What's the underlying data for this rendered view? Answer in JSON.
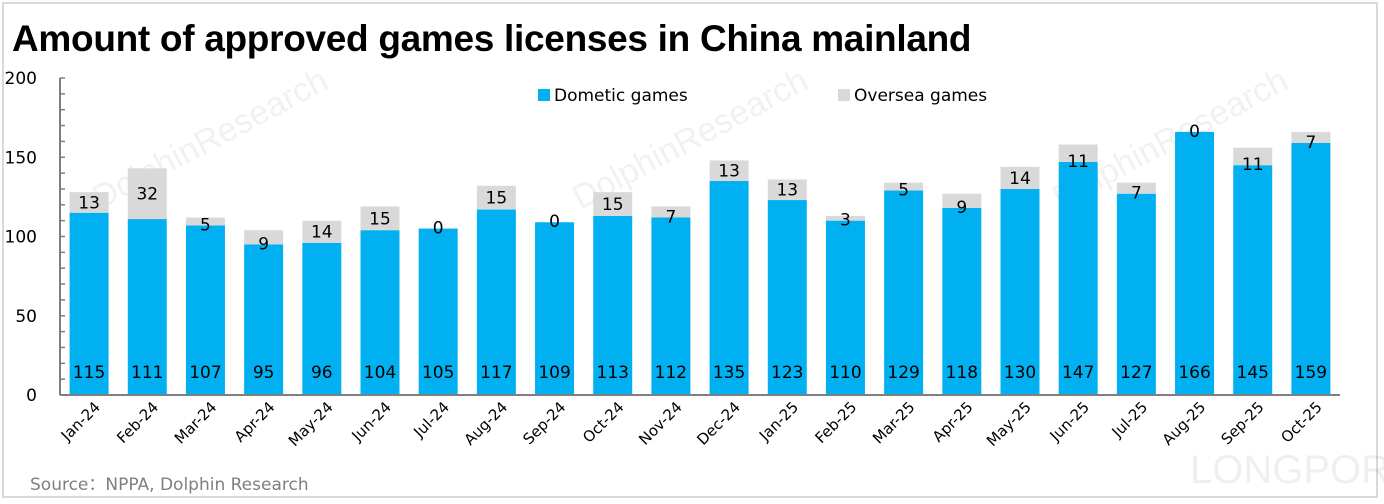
{
  "title": "Amount of approved games licenses in China mainland",
  "source": "Source：NPPA, Dolphin Research",
  "watermark": {
    "brand": "DolphinResearch",
    "logo": "LONGPORT"
  },
  "colors": {
    "domestic": "#00B0F0",
    "oversea": "#D9D9D9",
    "axis": "#7f7f7f"
  },
  "chart_data": {
    "type": "bar",
    "stacked": true,
    "title": "Amount of approved games licenses in China mainland",
    "xlabel": "",
    "ylabel": "",
    "ylim": [
      0,
      200
    ],
    "yticks": [
      0,
      50,
      100,
      150,
      200
    ],
    "legend_position": "top-center",
    "categories": [
      "Jan-24",
      "Feb-24",
      "Mar-24",
      "Apr-24",
      "May-24",
      "Jun-24",
      "Jul-24",
      "Aug-24",
      "Sep-24",
      "Oct-24",
      "Nov-24",
      "Dec-24",
      "Jan-25",
      "Feb-25",
      "Mar-25",
      "Apr-25",
      "May-25",
      "Jun-25",
      "Jul-25",
      "Aug-25",
      "Sep-25",
      "Oct-25"
    ],
    "series": [
      {
        "name": "Dometic games",
        "values": [
          115,
          111,
          107,
          95,
          96,
          104,
          105,
          117,
          109,
          113,
          112,
          135,
          123,
          110,
          129,
          118,
          130,
          147,
          127,
          166,
          145,
          159
        ]
      },
      {
        "name": "Oversea games",
        "values": [
          13,
          32,
          5,
          9,
          14,
          15,
          0,
          15,
          0,
          15,
          7,
          13,
          13,
          3,
          5,
          9,
          14,
          11,
          7,
          0,
          11,
          7
        ]
      }
    ]
  }
}
